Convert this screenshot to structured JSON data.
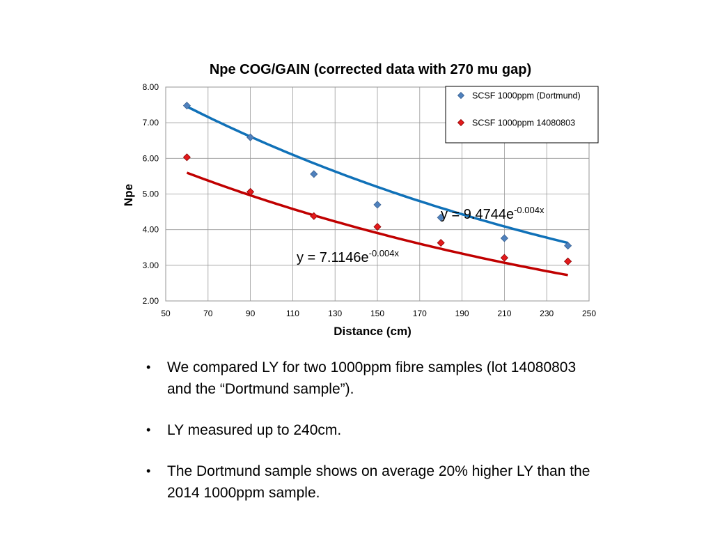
{
  "chart_data": {
    "type": "scatter",
    "title": "Npe COG/GAIN  (corrected data with 270 mu gap)",
    "xlabel": "Distance (cm)",
    "ylabel": "Npe",
    "xlim": [
      50,
      250
    ],
    "ylim": [
      2.0,
      8.0
    ],
    "x_ticks": [
      50,
      70,
      90,
      110,
      130,
      150,
      170,
      190,
      210,
      230,
      250
    ],
    "y_ticks": [
      "2.00",
      "3.00",
      "4.00",
      "5.00",
      "6.00",
      "7.00",
      "8.00"
    ],
    "grid": true,
    "legend_position": "top-right",
    "series": [
      {
        "name": "SCSF 1000ppm (Dortmund)",
        "color": "#4F81BD",
        "trend_color": "#1071B8",
        "x": [
          60,
          90,
          120,
          150,
          180,
          210,
          240
        ],
        "y": [
          7.48,
          6.59,
          5.56,
          4.7,
          4.34,
          3.76,
          3.55
        ],
        "trend": {
          "a": 9.4744,
          "b": -0.004
        },
        "trend_label": {
          "prefix": "y = 9.4744e",
          "exp": "-0.004x"
        }
      },
      {
        "name": "SCSF 1000ppm 14080803",
        "color": "#E31A1C",
        "trend_color": "#C00000",
        "x": [
          60,
          90,
          120,
          150,
          180,
          210,
          240
        ],
        "y": [
          6.03,
          5.06,
          4.38,
          4.08,
          3.63,
          3.21,
          3.11
        ],
        "trend": {
          "a": 7.1146,
          "b": -0.004
        },
        "trend_label": {
          "prefix": "y = 7.1146e",
          "exp": "-0.004x"
        }
      }
    ]
  },
  "bullets": [
    "We compared LY for two 1000ppm fibre samples (lot 14080803 and the “Dortmund sample”).",
    "LY measured up to 240cm.",
    "The Dortmund sample shows on average 20% higher LY than the 2014 1000ppm sample."
  ]
}
